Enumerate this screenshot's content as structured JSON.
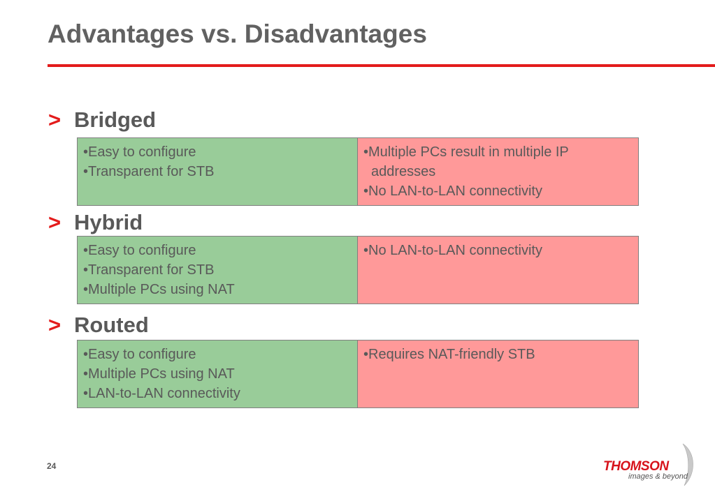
{
  "slide": {
    "title": "Advantages vs. Disadvantages",
    "page_number": "24",
    "accent_color": "#e31b1b",
    "advantage_color": "#99cc99",
    "disadvantage_color": "#ff9999"
  },
  "sections": [
    {
      "marker": ">",
      "label": "Bridged",
      "advantages": [
        "•Easy to configure",
        "•Transparent for STB"
      ],
      "disadvantages": [
        "•Multiple PCs result in multiple IP",
        "addresses",
        "•No LAN-to-LAN connectivity"
      ]
    },
    {
      "marker": ">",
      "label": "Hybrid",
      "advantages": [
        "•Easy to configure",
        "•Transparent for STB",
        "•Multiple PCs using NAT"
      ],
      "disadvantages": [
        "•No LAN-to-LAN connectivity"
      ]
    },
    {
      "marker": ">",
      "label": "Routed",
      "advantages": [
        "•Easy to configure",
        "•Multiple PCs using NAT",
        "•LAN-to-LAN connectivity"
      ],
      "disadvantages": [
        "•Requires NAT-friendly STB"
      ]
    }
  ],
  "logo": {
    "word": "THOMSON",
    "tagline": "images & beyond"
  }
}
